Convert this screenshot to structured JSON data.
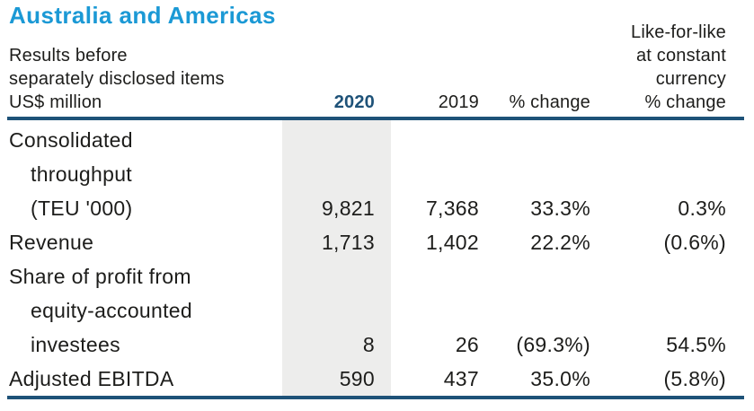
{
  "title": "Australia and Americas",
  "colors": {
    "title_blue": "#1b99d5",
    "navy_rule": "#1e5278",
    "body_text": "#1d1d1b",
    "column_highlight": "#ededec"
  },
  "header": {
    "caption_lines": [
      "Results before",
      "separately disclosed items",
      "US$ million"
    ],
    "col_2020": "2020",
    "col_2019": "2019",
    "col_change": "% change",
    "col_lfl_lines": [
      "Like-for-like",
      "at constant",
      "currency",
      "% change"
    ]
  },
  "table": {
    "rows": [
      {
        "label_lines": [
          "Consolidated",
          "throughput",
          "(TEU '000)"
        ],
        "values": {
          "y2020": "9,821",
          "y2019": "7,368",
          "change": "33.3%",
          "lfl": "0.3%"
        }
      },
      {
        "label_lines": [
          "Revenue"
        ],
        "values": {
          "y2020": "1,713",
          "y2019": "1,402",
          "change": "22.2%",
          "lfl": "(0.6%)"
        }
      },
      {
        "label_lines": [
          "Share of profit from",
          "equity-accounted",
          "investees"
        ],
        "values": {
          "y2020": "8",
          "y2019": "26",
          "change": "(69.3%)",
          "lfl": "54.5%"
        }
      },
      {
        "label_lines": [
          "Adjusted EBITDA"
        ],
        "values": {
          "y2020": "590",
          "y2019": "437",
          "change": "35.0%",
          "lfl": "(5.8%)"
        }
      }
    ]
  }
}
